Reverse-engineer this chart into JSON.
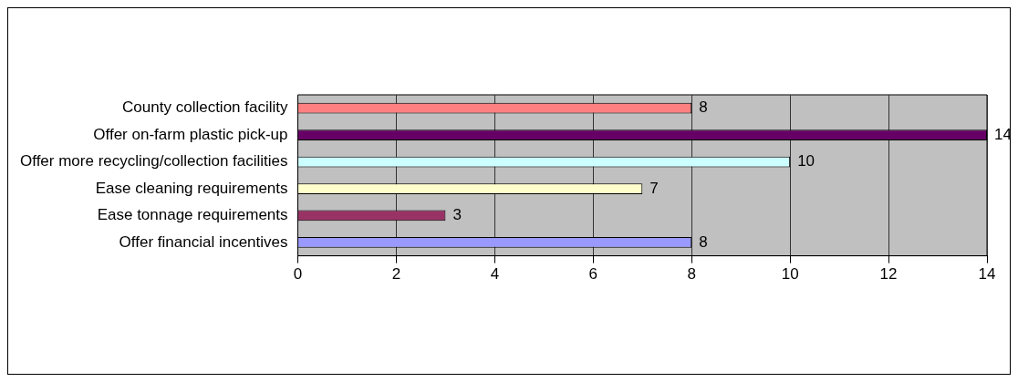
{
  "chart_data": {
    "type": "bar",
    "orientation": "horizontal",
    "categories": [
      "County collection facility",
      "Offer on-farm plastic pick-up",
      "Offer more recycling/collection facilities",
      "Ease cleaning requirements",
      "Ease tonnage requirements",
      "Offer financial incentives"
    ],
    "values": [
      8,
      14,
      10,
      7,
      3,
      8
    ],
    "colors": [
      "#ff8080",
      "#660066",
      "#ccffff",
      "#ffffcc",
      "#993366",
      "#9999ff"
    ],
    "xlim": [
      0,
      14
    ],
    "xticks": [
      0,
      2,
      4,
      6,
      8,
      10,
      12,
      14
    ],
    "grid": "x",
    "data_labels": true,
    "legend": false
  }
}
